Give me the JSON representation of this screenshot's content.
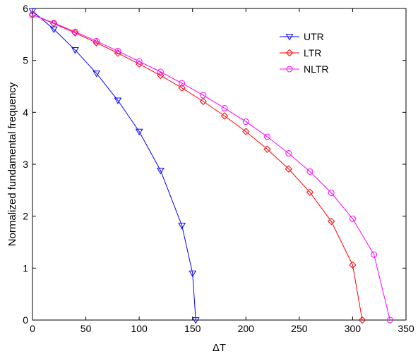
{
  "chart_data": {
    "type": "line",
    "title": "",
    "xlabel": "ΔT",
    "ylabel": "Normalized fundamental frequency",
    "xlim": [
      0,
      350
    ],
    "ylim": [
      0,
      6
    ],
    "xticks": [
      "0",
      "50",
      "100",
      "150",
      "200",
      "250",
      "300",
      "350"
    ],
    "yticks": [
      "0",
      "1",
      "2",
      "3",
      "4",
      "5",
      "6"
    ],
    "grid": false,
    "legend": "top-right",
    "series": [
      {
        "name": "UTR",
        "color": "#0000ff",
        "marker": "triangle-down",
        "x": [
          0,
          20,
          40,
          60,
          80,
          100,
          120,
          140,
          150,
          153
        ],
        "y": [
          5.95,
          5.6,
          5.2,
          4.75,
          4.23,
          3.63,
          2.88,
          1.82,
          0.9,
          0
        ]
      },
      {
        "name": "LTR",
        "color": "#ff0000",
        "marker": "diamond",
        "x": [
          0,
          20,
          40,
          60,
          80,
          100,
          120,
          140,
          160,
          180,
          200,
          220,
          240,
          260,
          280,
          300,
          309
        ],
        "y": [
          5.88,
          5.71,
          5.53,
          5.34,
          5.14,
          4.93,
          4.71,
          4.47,
          4.21,
          3.93,
          3.63,
          3.29,
          2.91,
          2.46,
          1.9,
          1.06,
          0
        ]
      },
      {
        "name": "NLTR",
        "color": "#ff00ff",
        "marker": "circle",
        "x": [
          0,
          20,
          40,
          60,
          80,
          100,
          120,
          140,
          160,
          180,
          200,
          220,
          240,
          260,
          280,
          300,
          320,
          335
        ],
        "y": [
          5.88,
          5.72,
          5.55,
          5.37,
          5.18,
          4.98,
          4.78,
          4.56,
          4.33,
          4.08,
          3.82,
          3.53,
          3.21,
          2.86,
          2.45,
          1.95,
          1.26,
          0
        ]
      }
    ]
  }
}
